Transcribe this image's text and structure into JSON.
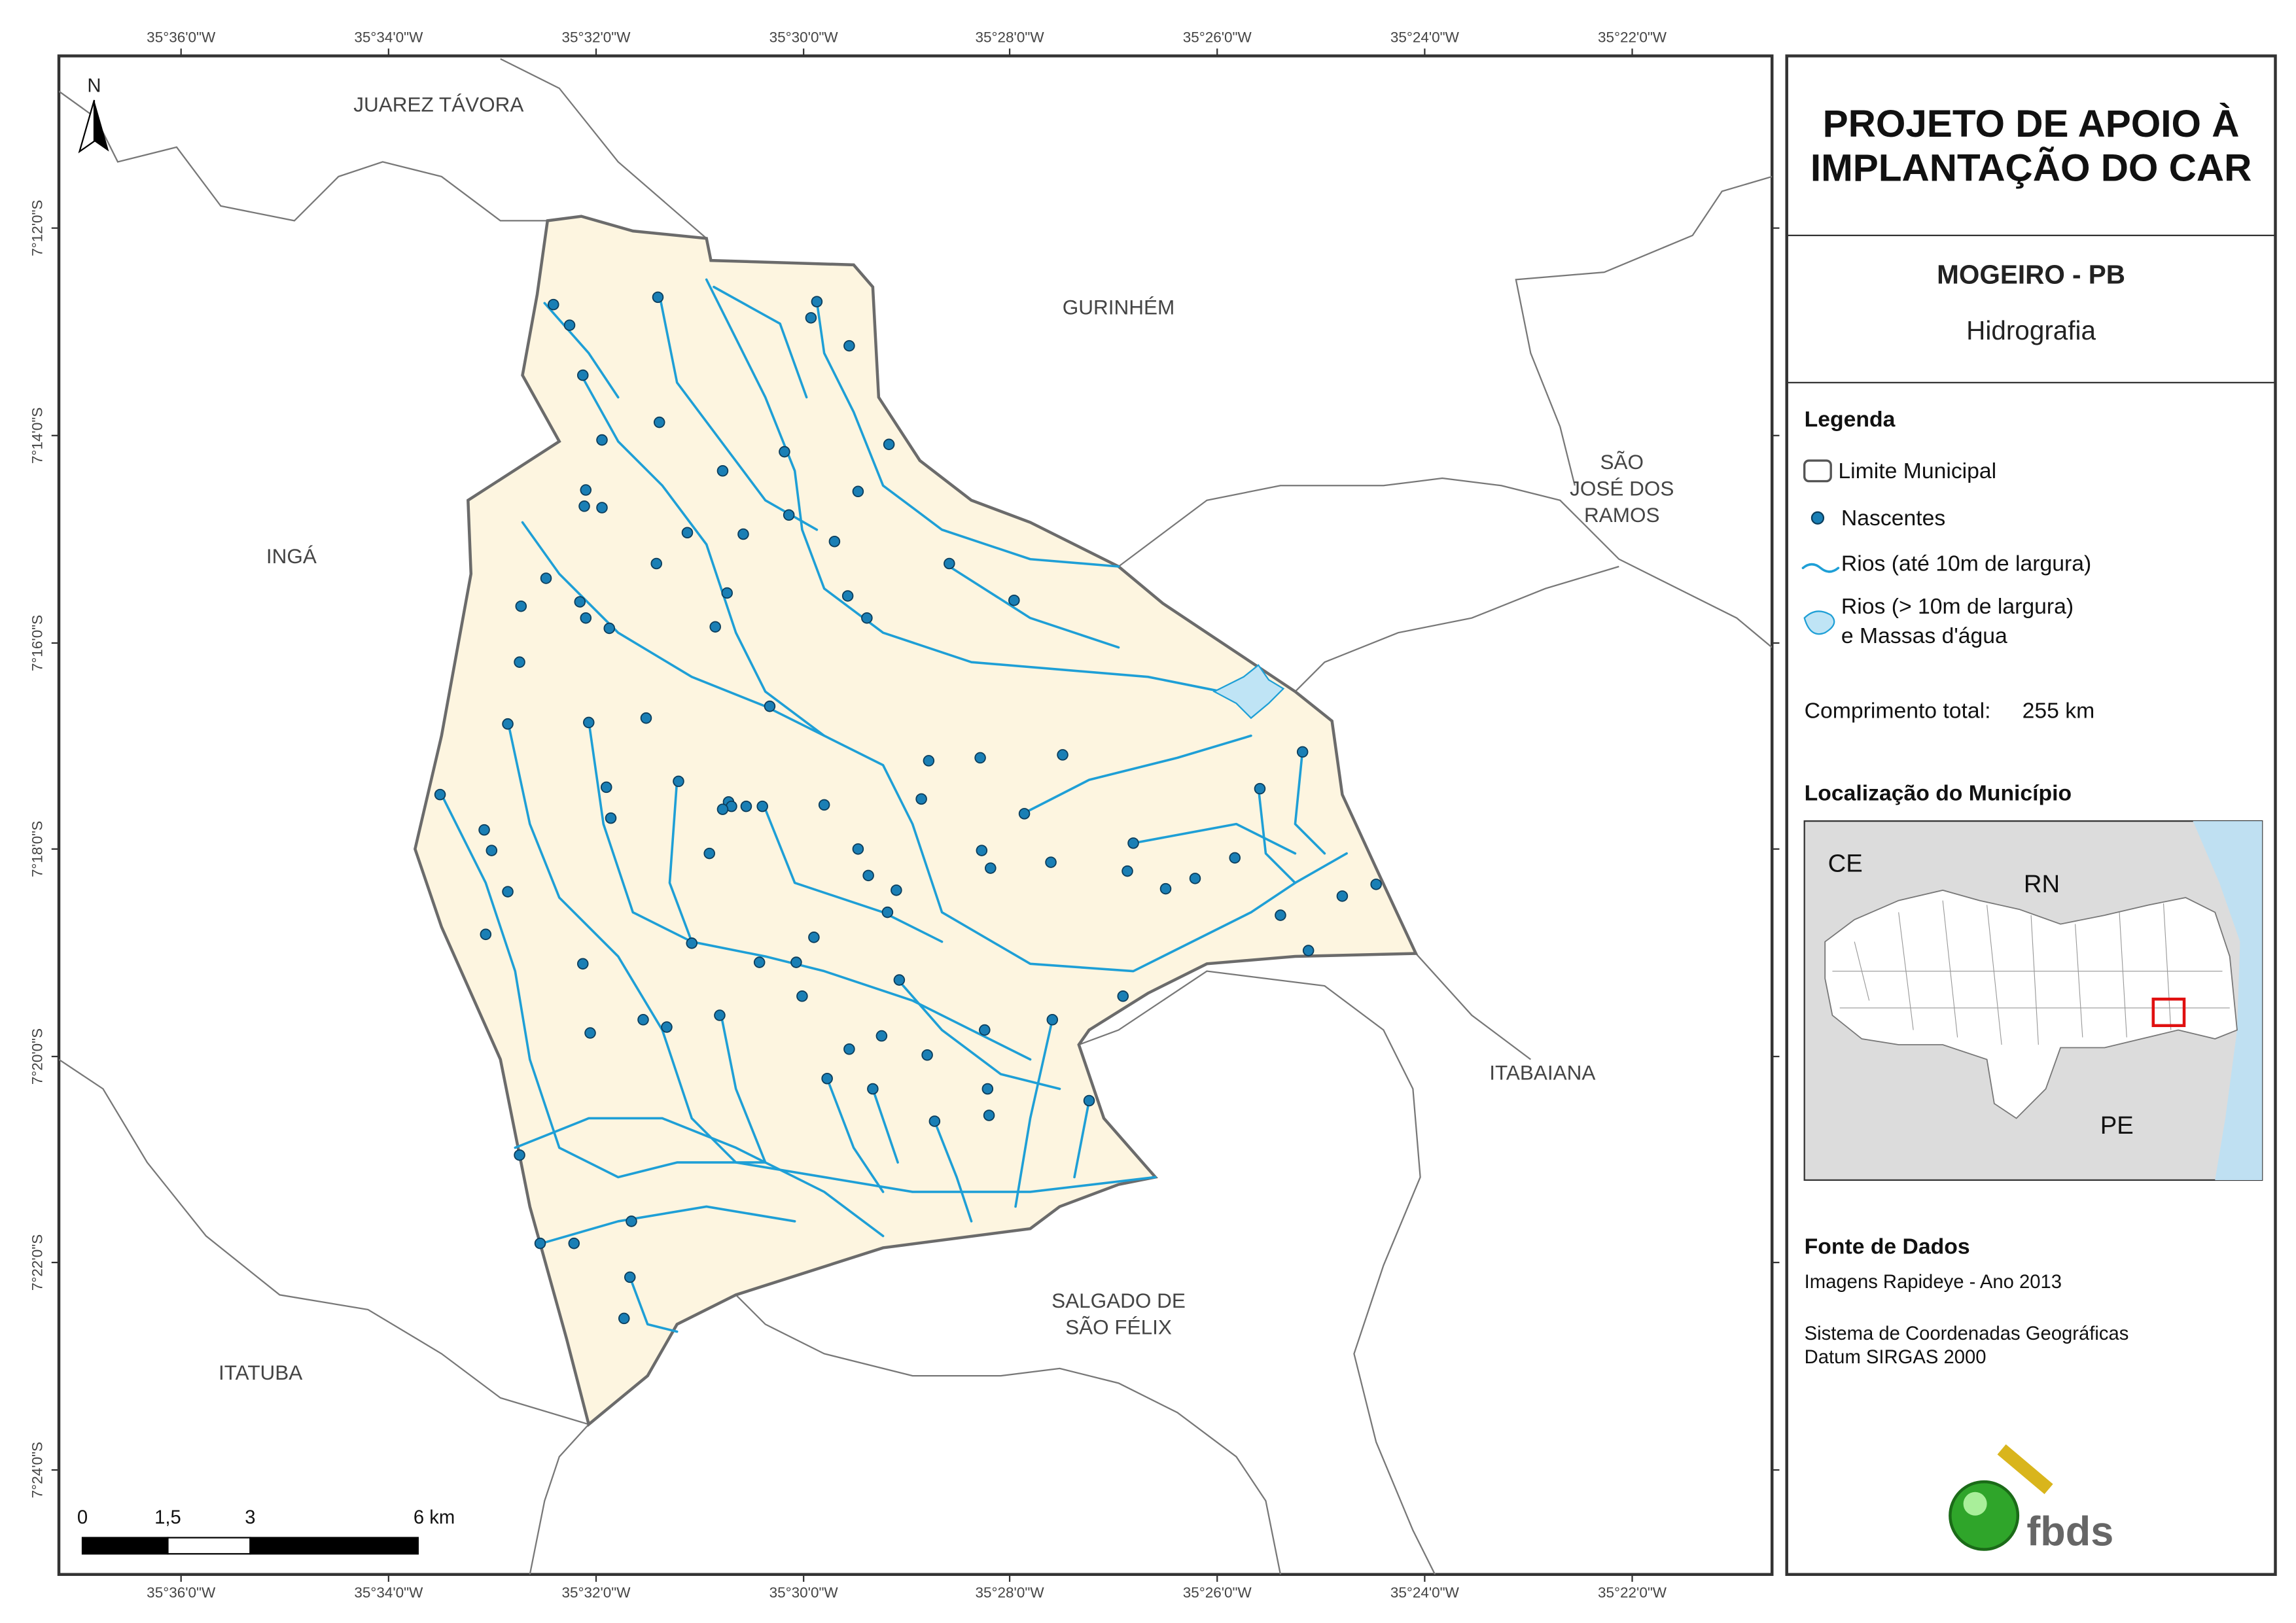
{
  "map": {
    "lon_labels": [
      "35°36'0\"W",
      "35°34'0\"W",
      "35°32'0\"W",
      "35°30'0\"W",
      "35°28'0\"W",
      "35°26'0\"W",
      "35°24'0\"W",
      "35°22'0\"W"
    ],
    "lat_labels": [
      "7°12'0\"S",
      "7°14'0\"S",
      "7°16'0\"S",
      "7°18'0\"S",
      "7°20'0\"S",
      "7°22'0\"S",
      "7°24'0\"S"
    ],
    "north": "N",
    "places": {
      "juarez": [
        "JUAREZ TÁVORA"
      ],
      "gurinhem": [
        "GURINHÉM"
      ],
      "sao_jose": [
        "SÃO",
        "JOSÉ DOS",
        "RAMOS"
      ],
      "inga": [
        "INGÁ"
      ],
      "itabaiana": [
        "ITABAIANA"
      ],
      "salgado": [
        "SALGADO DE",
        "SÃO FÉLIX"
      ],
      "itatuba": [
        "ITATUBA"
      ]
    },
    "scale_labels": [
      "0",
      "1,5",
      "3",
      "6 km"
    ]
  },
  "panel": {
    "title": [
      "PROJETO DE APOIO À",
      "IMPLANTAÇÃO DO CAR"
    ],
    "municipality": "MOGEIRO - PB",
    "theme": "Hidrografia",
    "legend": {
      "title": "Legenda",
      "items": [
        [
          "Limite Municipal"
        ],
        [
          "Nascentes"
        ],
        [
          "Rios (até 10m de largura)"
        ],
        [
          "Rios (> 10m de largura)",
          "e Massas d'água"
        ]
      ]
    },
    "total_length": {
      "label": "Comprimento total:",
      "value": "255 km"
    },
    "location": {
      "title": "Localização do Município",
      "labels": [
        "CE",
        "RN",
        "PE"
      ]
    },
    "source": {
      "title": "Fonte de Dados",
      "lines": [
        "Imagens Rapideye - Ano 2013",
        "Sistema de Coordenadas Geográficas",
        "Datum SIRGAS 2000"
      ]
    },
    "logo": "fbds"
  }
}
